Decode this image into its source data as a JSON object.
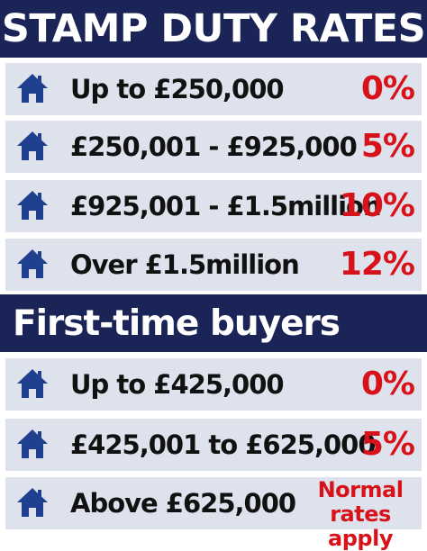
{
  "title": "STAMP DUTY RATES",
  "standard_rates": [
    {
      "band": "Up to £250,000",
      "rate": "0%"
    },
    {
      "band": "£250,001 - £925,000",
      "rate": "5%"
    },
    {
      "band": "£925,001 -  £1.5million",
      "rate": "10%"
    },
    {
      "band": "Over £1.5million",
      "rate": "12%"
    }
  ],
  "first_time_heading": "First-time buyers",
  "first_time_rates": [
    {
      "band": "Up to £425,000",
      "rate": "0%"
    },
    {
      "band": "£425,001 to £625,000",
      "rate": "5%"
    },
    {
      "band": "Above £625,000",
      "rate": "Normal rates apply"
    }
  ],
  "icon": "house-icon",
  "colors": {
    "header_bg": "#1a2456",
    "row_bg": "#dde2ec",
    "icon": "#1f3f8f",
    "rate_text": "#d8121a",
    "band_text": "#111111"
  }
}
